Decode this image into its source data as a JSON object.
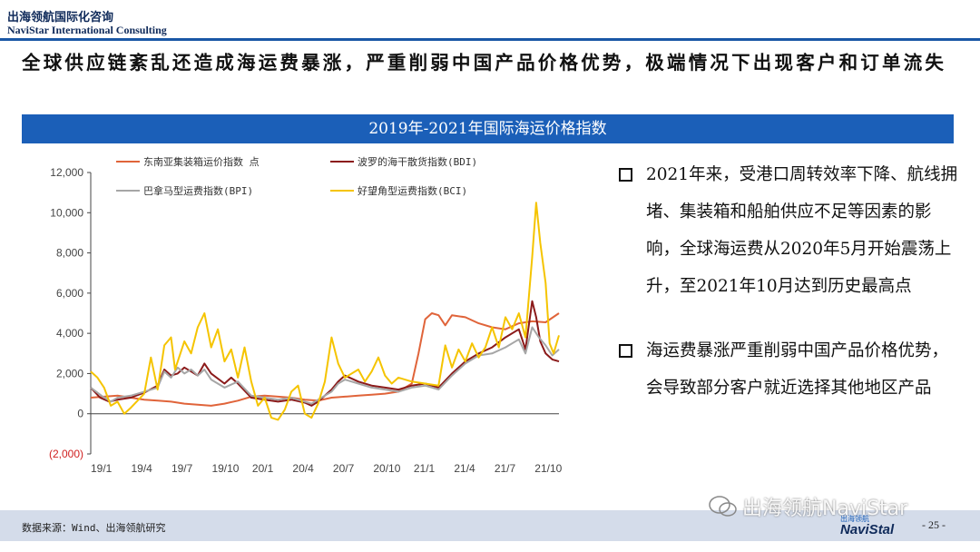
{
  "header": {
    "brand_cn": "出海领航国际化咨询",
    "brand_en": "NaviStar International Consulting"
  },
  "headline": "全球供应链紊乱还造成海运费暴涨，严重削弱中国产品价格优势，极端情况下出现客户和订单流失",
  "chart_banner": "2019年-2021年国际海运价格指数",
  "bullets": [
    "2021年来，受港口周转效率下降、航线拥堵、集装箱和船舶供应不足等因素的影响，全球海运费从2020年5月开始震荡上升，至2021年10月达到历史最高点",
    "海运费暴涨严重削弱中国产品价格优势，会导致部分客户就近选择其他地区产品"
  ],
  "footer": {
    "source": "数据来源：Wind、出海领航研究",
    "page_number": "- 25 -",
    "wechat_watermark": "出海领航NaviStar",
    "logo_small": "出海领航",
    "logo_main": "NaviStal"
  },
  "colors": {
    "banner": "#1b5fb8",
    "top_rule": "#1a57a6",
    "footer_bar": "#d4dcea",
    "series": [
      "#e0643a",
      "#8b1a1a",
      "#a6a6a6",
      "#f5c400"
    ],
    "negative_tick": "#d02020"
  },
  "chart_data": {
    "type": "line",
    "title": "2019年-2021年国际海运价格指数",
    "xlabel": "",
    "ylabel": "",
    "ylim": [
      -2000,
      12000
    ],
    "yticks": [
      -2000,
      0,
      2000,
      4000,
      6000,
      8000,
      10000,
      12000
    ],
    "ytick_labels": [
      "(2,000)",
      "0",
      "2,000",
      "4,000",
      "6,000",
      "8,000",
      "10,000",
      "12,000"
    ],
    "x_tick_labels": [
      "19/1",
      "19/4",
      "19/7",
      "19/10",
      "20/1",
      "20/4",
      "20/7",
      "20/10",
      "21/1",
      "21/4",
      "21/7",
      "21/10"
    ],
    "x_range": [
      0,
      35
    ],
    "legend_position": "top",
    "grid": false,
    "series": [
      {
        "name": "东南亚集装箱运价指数 点",
        "color": "#e0643a",
        "points": [
          [
            0,
            800
          ],
          [
            1,
            850
          ],
          [
            2,
            900
          ],
          [
            3,
            800
          ],
          [
            4,
            700
          ],
          [
            5,
            650
          ],
          [
            6,
            600
          ],
          [
            7,
            500
          ],
          [
            8,
            450
          ],
          [
            9,
            400
          ],
          [
            10,
            500
          ],
          [
            11,
            650
          ],
          [
            12,
            850
          ],
          [
            13,
            900
          ],
          [
            14,
            850
          ],
          [
            15,
            800
          ],
          [
            16,
            700
          ],
          [
            17,
            650
          ],
          [
            18,
            800
          ],
          [
            19,
            850
          ],
          [
            20,
            900
          ],
          [
            21,
            950
          ],
          [
            22,
            1000
          ],
          [
            23,
            1100
          ],
          [
            24,
            1500
          ],
          [
            24.5,
            3000
          ],
          [
            25,
            4700
          ],
          [
            25.5,
            5000
          ],
          [
            26,
            4900
          ],
          [
            26.5,
            4400
          ],
          [
            27,
            4900
          ],
          [
            28,
            4800
          ],
          [
            29,
            4500
          ],
          [
            30,
            4300
          ],
          [
            31,
            4200
          ],
          [
            32,
            4500
          ],
          [
            33,
            4600
          ],
          [
            34,
            4550
          ],
          [
            35,
            5000
          ]
        ]
      },
      {
        "name": "波罗的海干散货指数(BDI)",
        "color": "#8b1a1a",
        "points": [
          [
            0,
            1300
          ],
          [
            0.7,
            800
          ],
          [
            1.4,
            600
          ],
          [
            2,
            700
          ],
          [
            3,
            800
          ],
          [
            4,
            1050
          ],
          [
            5,
            1400
          ],
          [
            5.5,
            2200
          ],
          [
            6,
            1900
          ],
          [
            6.5,
            2000
          ],
          [
            7,
            2300
          ],
          [
            7.5,
            2100
          ],
          [
            8,
            1900
          ],
          [
            8.5,
            2500
          ],
          [
            9,
            2000
          ],
          [
            10,
            1500
          ],
          [
            10.5,
            1800
          ],
          [
            11,
            1500
          ],
          [
            12,
            800
          ],
          [
            13,
            700
          ],
          [
            14,
            600
          ],
          [
            15,
            700
          ],
          [
            16,
            550
          ],
          [
            16.5,
            400
          ],
          [
            17,
            600
          ],
          [
            18,
            1200
          ],
          [
            18.5,
            1600
          ],
          [
            19,
            1900
          ],
          [
            20,
            1600
          ],
          [
            21,
            1400
          ],
          [
            22,
            1300
          ],
          [
            23,
            1200
          ],
          [
            24,
            1400
          ],
          [
            25,
            1500
          ],
          [
            26,
            1300
          ],
          [
            27,
            2000
          ],
          [
            28,
            2600
          ],
          [
            29,
            3000
          ],
          [
            30,
            3300
          ],
          [
            31,
            3800
          ],
          [
            32,
            4200
          ],
          [
            32.5,
            3200
          ],
          [
            33,
            5600
          ],
          [
            33.3,
            4800
          ],
          [
            33.6,
            3600
          ],
          [
            34,
            3000
          ],
          [
            34.5,
            2700
          ],
          [
            35,
            2600
          ]
        ]
      },
      {
        "name": "巴拿马型运费指数(BPI)",
        "color": "#a6a6a6",
        "points": [
          [
            0,
            1300
          ],
          [
            0.8,
            900
          ],
          [
            1.5,
            600
          ],
          [
            2,
            800
          ],
          [
            3,
            900
          ],
          [
            4,
            1100
          ],
          [
            5,
            1300
          ],
          [
            5.5,
            2100
          ],
          [
            6,
            1800
          ],
          [
            6.5,
            2300
          ],
          [
            7,
            2000
          ],
          [
            7.5,
            2200
          ],
          [
            8,
            1900
          ],
          [
            8.5,
            2200
          ],
          [
            9,
            1700
          ],
          [
            10,
            1300
          ],
          [
            11,
            1600
          ],
          [
            12,
            900
          ],
          [
            13,
            800
          ],
          [
            14,
            700
          ],
          [
            15,
            800
          ],
          [
            16,
            600
          ],
          [
            16.5,
            500
          ],
          [
            17,
            700
          ],
          [
            18,
            1100
          ],
          [
            18.5,
            1500
          ],
          [
            19,
            1700
          ],
          [
            20,
            1500
          ],
          [
            21,
            1300
          ],
          [
            22,
            1200
          ],
          [
            23,
            1100
          ],
          [
            24,
            1300
          ],
          [
            25,
            1400
          ],
          [
            26,
            1200
          ],
          [
            27,
            1900
          ],
          [
            28,
            2500
          ],
          [
            29,
            2900
          ],
          [
            30,
            3000
          ],
          [
            31,
            3300
          ],
          [
            32,
            3700
          ],
          [
            32.5,
            3000
          ],
          [
            33,
            4300
          ],
          [
            33.5,
            3800
          ],
          [
            34,
            3400
          ],
          [
            34.5,
            2900
          ],
          [
            35,
            3200
          ]
        ]
      },
      {
        "name": "好望角型运费指数(BCI)",
        "color": "#f5c400",
        "points": [
          [
            0,
            2100
          ],
          [
            0.5,
            1800
          ],
          [
            1,
            1300
          ],
          [
            1.5,
            400
          ],
          [
            2,
            600
          ],
          [
            2.5,
            0
          ],
          [
            3,
            300
          ],
          [
            4,
            1000
          ],
          [
            4.5,
            2800
          ],
          [
            5,
            1200
          ],
          [
            5.5,
            3400
          ],
          [
            6,
            3800
          ],
          [
            6.3,
            2200
          ],
          [
            7,
            3600
          ],
          [
            7.5,
            3000
          ],
          [
            8,
            4300
          ],
          [
            8.5,
            5000
          ],
          [
            9,
            3300
          ],
          [
            9.5,
            4200
          ],
          [
            10,
            2600
          ],
          [
            10.5,
            3200
          ],
          [
            11,
            1800
          ],
          [
            11.5,
            3300
          ],
          [
            12,
            1600
          ],
          [
            12.5,
            400
          ],
          [
            13,
            800
          ],
          [
            13.5,
            -200
          ],
          [
            14,
            -300
          ],
          [
            14.5,
            200
          ],
          [
            15,
            1100
          ],
          [
            15.5,
            1400
          ],
          [
            16,
            0
          ],
          [
            16.5,
            -200
          ],
          [
            17,
            500
          ],
          [
            17.5,
            1600
          ],
          [
            18,
            3800
          ],
          [
            18.5,
            2500
          ],
          [
            19,
            1800
          ],
          [
            20,
            2200
          ],
          [
            20.5,
            1600
          ],
          [
            21,
            2100
          ],
          [
            21.5,
            2800
          ],
          [
            22,
            1900
          ],
          [
            22.5,
            1500
          ],
          [
            23,
            1800
          ],
          [
            24,
            1600
          ],
          [
            25,
            1500
          ],
          [
            26,
            1400
          ],
          [
            26.5,
            3400
          ],
          [
            27,
            2300
          ],
          [
            27.5,
            3200
          ],
          [
            28,
            2600
          ],
          [
            28.5,
            3500
          ],
          [
            29,
            2800
          ],
          [
            29.5,
            3300
          ],
          [
            30,
            4300
          ],
          [
            30.5,
            3300
          ],
          [
            31,
            4800
          ],
          [
            31.5,
            4200
          ],
          [
            32,
            5000
          ],
          [
            32.5,
            3800
          ],
          [
            33,
            7800
          ],
          [
            33.3,
            10500
          ],
          [
            33.6,
            8500
          ],
          [
            34,
            6500
          ],
          [
            34.3,
            3500
          ],
          [
            34.6,
            3000
          ],
          [
            35,
            3900
          ]
        ]
      }
    ]
  }
}
